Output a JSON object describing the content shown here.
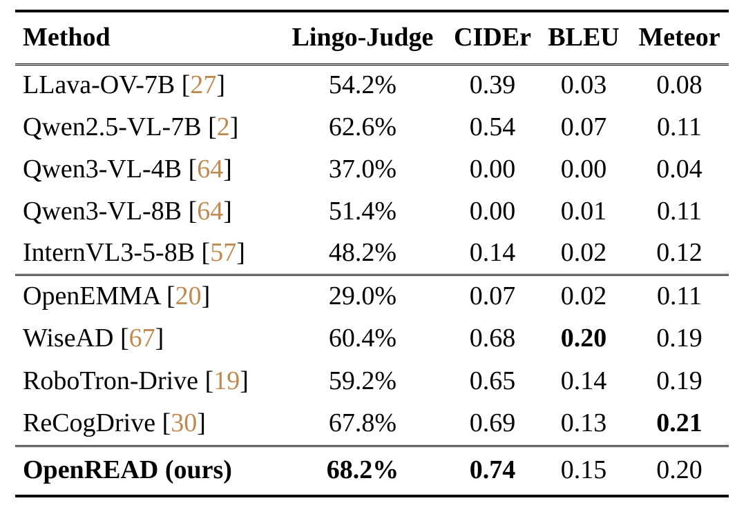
{
  "colors": {
    "background": "#ffffff",
    "text": "#000000",
    "citation": "#c08a4e",
    "rule": "#000000"
  },
  "table": {
    "columns": [
      {
        "label": "Method"
      },
      {
        "label": "Lingo-Judge"
      },
      {
        "label": "CIDEr"
      },
      {
        "label": "BLEU"
      },
      {
        "label": "Meteor"
      }
    ],
    "sections": [
      {
        "name": "general-vlms",
        "rows": [
          {
            "method": "LLava-OV-7B",
            "ref": "27",
            "method_bold": false,
            "values": [
              {
                "text": "54.2%",
                "bold": false
              },
              {
                "text": "0.39",
                "bold": false
              },
              {
                "text": "0.03",
                "bold": false
              },
              {
                "text": "0.08",
                "bold": false
              }
            ]
          },
          {
            "method": "Qwen2.5-VL-7B",
            "ref": "2",
            "method_bold": false,
            "values": [
              {
                "text": "62.6%",
                "bold": false
              },
              {
                "text": "0.54",
                "bold": false
              },
              {
                "text": "0.07",
                "bold": false
              },
              {
                "text": "0.11",
                "bold": false
              }
            ]
          },
          {
            "method": "Qwen3-VL-4B",
            "ref": "64",
            "method_bold": false,
            "values": [
              {
                "text": "37.0%",
                "bold": false
              },
              {
                "text": "0.00",
                "bold": false
              },
              {
                "text": "0.00",
                "bold": false
              },
              {
                "text": "0.04",
                "bold": false
              }
            ]
          },
          {
            "method": "Qwen3-VL-8B",
            "ref": "64",
            "method_bold": false,
            "values": [
              {
                "text": "51.4%",
                "bold": false
              },
              {
                "text": "0.00",
                "bold": false
              },
              {
                "text": "0.01",
                "bold": false
              },
              {
                "text": "0.11",
                "bold": false
              }
            ]
          },
          {
            "method": "InternVL3-5-8B",
            "ref": "57",
            "method_bold": false,
            "values": [
              {
                "text": "48.2%",
                "bold": false
              },
              {
                "text": "0.14",
                "bold": false
              },
              {
                "text": "0.02",
                "bold": false
              },
              {
                "text": "0.12",
                "bold": false
              }
            ]
          }
        ]
      },
      {
        "name": "driving-methods",
        "rows": [
          {
            "method": "OpenEMMA",
            "ref": "20",
            "method_bold": false,
            "values": [
              {
                "text": "29.0%",
                "bold": false
              },
              {
                "text": "0.07",
                "bold": false
              },
              {
                "text": "0.02",
                "bold": false
              },
              {
                "text": "0.11",
                "bold": false
              }
            ]
          },
          {
            "method": "WiseAD",
            "ref": "67",
            "method_bold": false,
            "values": [
              {
                "text": "60.4%",
                "bold": false
              },
              {
                "text": "0.68",
                "bold": false
              },
              {
                "text": "0.20",
                "bold": true
              },
              {
                "text": "0.19",
                "bold": false
              }
            ]
          },
          {
            "method": "RoboTron-Drive",
            "ref": "19",
            "method_bold": false,
            "values": [
              {
                "text": "59.2%",
                "bold": false
              },
              {
                "text": "0.65",
                "bold": false
              },
              {
                "text": "0.14",
                "bold": false
              },
              {
                "text": "0.19",
                "bold": false
              }
            ]
          },
          {
            "method": "ReCogDrive",
            "ref": "30",
            "method_bold": false,
            "values": [
              {
                "text": "67.8%",
                "bold": false
              },
              {
                "text": "0.69",
                "bold": false
              },
              {
                "text": "0.13",
                "bold": false
              },
              {
                "text": "0.21",
                "bold": true
              }
            ]
          }
        ]
      },
      {
        "name": "ours",
        "rows": [
          {
            "method": "OpenREAD (ours)",
            "ref": null,
            "method_bold": true,
            "values": [
              {
                "text": "68.2%",
                "bold": true
              },
              {
                "text": "0.74",
                "bold": true
              },
              {
                "text": "0.15",
                "bold": false
              },
              {
                "text": "0.20",
                "bold": false
              }
            ]
          }
        ]
      }
    ]
  }
}
